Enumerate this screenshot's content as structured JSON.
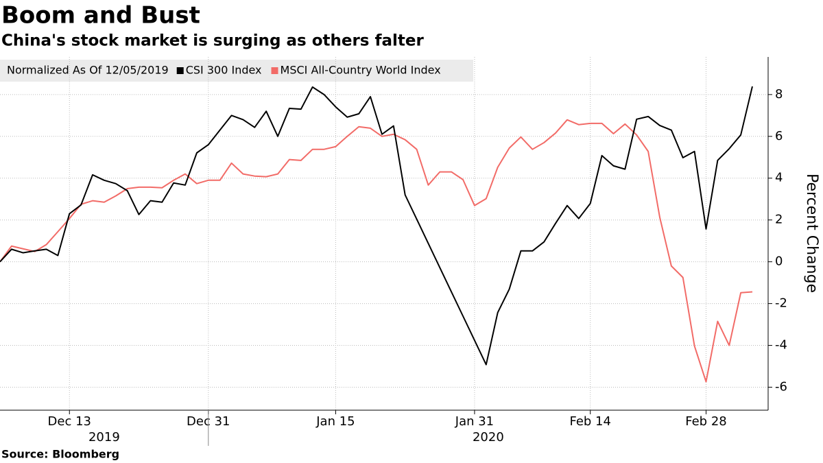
{
  "chart_data": {
    "type": "line",
    "title": "Boom and Bust",
    "subtitle": "China's stock market is surging as others falter",
    "legend_title": "Normalized As Of 12/05/2019",
    "y_label": "Percent Change",
    "source": "Source: Bloomberg",
    "year_labels": [
      "2019",
      "2020"
    ],
    "categories": [
      null,
      null,
      null,
      null,
      null,
      null,
      "Dec 13",
      null,
      null,
      null,
      null,
      null,
      null,
      null,
      null,
      null,
      null,
      null,
      "Dec 31",
      null,
      null,
      null,
      null,
      null,
      null,
      null,
      null,
      null,
      null,
      "Jan 15",
      null,
      null,
      null,
      null,
      null,
      null,
      null,
      null,
      null,
      null,
      null,
      "Jan 31",
      null,
      null,
      null,
      null,
      null,
      null,
      null,
      null,
      null,
      "Feb 14",
      null,
      null,
      null,
      null,
      null,
      null,
      null,
      null,
      null,
      "Feb 28",
      null,
      null,
      null,
      null
    ],
    "series": [
      {
        "name": "CSI 300 Index",
        "color": "#000000",
        "values": [
          0,
          0.6,
          0.43,
          0.52,
          0.6,
          0.3,
          2.3,
          2.72,
          4.16,
          3.9,
          3.74,
          3.4,
          2.26,
          2.92,
          2.85,
          3.77,
          3.67,
          5.21,
          5.6,
          6.3,
          7.0,
          6.8,
          6.43,
          7.2,
          6.0,
          7.34,
          7.3,
          8.36,
          8.0,
          7.41,
          6.92,
          7.08,
          7.9,
          6.1,
          6.5,
          3.2,
          2.04,
          0.88,
          -0.28,
          -1.44,
          -2.6,
          -3.76,
          -4.92,
          -2.43,
          -1.31,
          0.52,
          0.52,
          0.95,
          1.84,
          2.69,
          2.07,
          2.79,
          5.08,
          4.59,
          4.43,
          6.82,
          6.95,
          6.52,
          6.3,
          4.98,
          5.28,
          1.57,
          4.85,
          5.41,
          6.07,
          8.39
        ]
      },
      {
        "name": "MSCI All-Country World Index",
        "color": "#f26b67",
        "values": [
          0,
          0.75,
          0.62,
          0.49,
          0.82,
          1.44,
          2.07,
          2.75,
          2.92,
          2.85,
          3.15,
          3.5,
          3.57,
          3.57,
          3.54,
          3.9,
          4.2,
          3.74,
          3.9,
          3.9,
          4.72,
          4.2,
          4.1,
          4.07,
          4.2,
          4.89,
          4.85,
          5.38,
          5.38,
          5.51,
          6.0,
          6.46,
          6.39,
          6.0,
          6.1,
          5.84,
          5.38,
          3.67,
          4.3,
          4.3,
          3.93,
          2.69,
          3.02,
          4.52,
          5.44,
          5.97,
          5.38,
          5.7,
          6.16,
          6.79,
          6.56,
          6.62,
          6.62,
          6.13,
          6.59,
          6.07,
          5.28,
          2.13,
          -0.2,
          -0.75,
          -4.03,
          -5.74,
          -2.85,
          -4.0,
          -1.48,
          -1.44
        ]
      }
    ],
    "ylim": [
      -7.1,
      9.8
    ],
    "yticks": [
      -6,
      -4,
      -2,
      0,
      2,
      4,
      6,
      8
    ],
    "grid": true,
    "y_axis_side": "right"
  }
}
